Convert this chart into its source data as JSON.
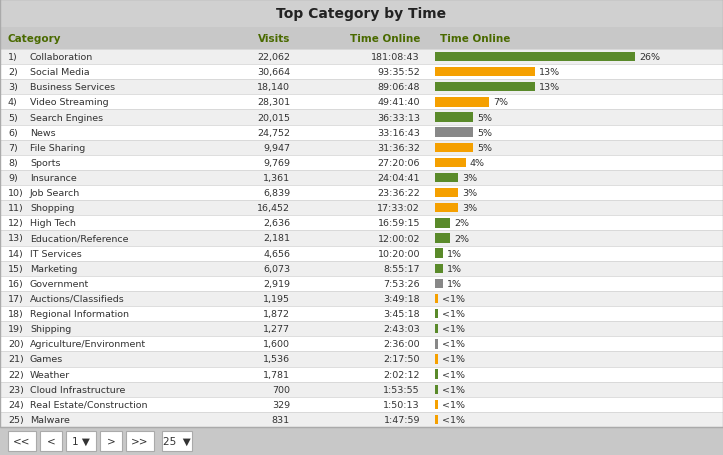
{
  "title": "Top Category by Time",
  "columns": [
    "Category",
    "Visits",
    "Time Online",
    "Time Online"
  ],
  "rows": [
    {
      "num": "1)",
      "category": "Collaboration",
      "visits": "22,062",
      "time": "181:08:43",
      "pct": 26,
      "color": "#5a8a2a"
    },
    {
      "num": "2)",
      "category": "Social Media",
      "visits": "30,664",
      "time": "93:35:52",
      "pct": 13,
      "color": "#f5a000"
    },
    {
      "num": "3)",
      "category": "Business Services",
      "visits": "18,140",
      "time": "89:06:48",
      "pct": 13,
      "color": "#5a8a2a"
    },
    {
      "num": "4)",
      "category": "Video Streaming",
      "visits": "28,301",
      "time": "49:41:40",
      "pct": 7,
      "color": "#f5a000"
    },
    {
      "num": "5)",
      "category": "Search Engines",
      "visits": "20,015",
      "time": "36:33:13",
      "pct": 5,
      "color": "#5a8a2a"
    },
    {
      "num": "6)",
      "category": "News",
      "visits": "24,752",
      "time": "33:16:43",
      "pct": 5,
      "color": "#888888"
    },
    {
      "num": "7)",
      "category": "File Sharing",
      "visits": "9,947",
      "time": "31:36:32",
      "pct": 5,
      "color": "#f5a000"
    },
    {
      "num": "8)",
      "category": "Sports",
      "visits": "9,769",
      "time": "27:20:06",
      "pct": 4,
      "color": "#f5a000"
    },
    {
      "num": "9)",
      "category": "Insurance",
      "visits": "1,361",
      "time": "24:04:41",
      "pct": 3,
      "color": "#5a8a2a"
    },
    {
      "num": "10)",
      "category": "Job Search",
      "visits": "6,839",
      "time": "23:36:22",
      "pct": 3,
      "color": "#f5a000"
    },
    {
      "num": "11)",
      "category": "Shopping",
      "visits": "16,452",
      "time": "17:33:02",
      "pct": 3,
      "color": "#f5a000"
    },
    {
      "num": "12)",
      "category": "High Tech",
      "visits": "2,636",
      "time": "16:59:15",
      "pct": 2,
      "color": "#5a8a2a"
    },
    {
      "num": "13)",
      "category": "Education/Reference",
      "visits": "2,181",
      "time": "12:00:02",
      "pct": 2,
      "color": "#5a8a2a"
    },
    {
      "num": "14)",
      "category": "IT Services",
      "visits": "4,656",
      "time": "10:20:00",
      "pct": 1,
      "color": "#5a8a2a"
    },
    {
      "num": "15)",
      "category": "Marketing",
      "visits": "6,073",
      "time": "8:55:17",
      "pct": 1,
      "color": "#5a8a2a"
    },
    {
      "num": "16)",
      "category": "Government",
      "visits": "2,919",
      "time": "7:53:26",
      "pct": 1,
      "color": "#888888"
    },
    {
      "num": "17)",
      "category": "Auctions/Classifieds",
      "visits": "1,195",
      "time": "3:49:18",
      "pct": -1,
      "color": "#f5a000"
    },
    {
      "num": "18)",
      "category": "Regional Information",
      "visits": "1,872",
      "time": "3:45:18",
      "pct": -1,
      "color": "#5a8a2a"
    },
    {
      "num": "19)",
      "category": "Shipping",
      "visits": "1,277",
      "time": "2:43:03",
      "pct": -1,
      "color": "#5a8a2a"
    },
    {
      "num": "20)",
      "category": "Agriculture/Environment",
      "visits": "1,600",
      "time": "2:36:00",
      "pct": -1,
      "color": "#888888"
    },
    {
      "num": "21)",
      "category": "Games",
      "visits": "1,536",
      "time": "2:17:50",
      "pct": -1,
      "color": "#f5a000"
    },
    {
      "num": "22)",
      "category": "Weather",
      "visits": "1,781",
      "time": "2:02:12",
      "pct": -1,
      "color": "#5a8a2a"
    },
    {
      "num": "23)",
      "category": "Cloud Infrastructure",
      "visits": "700",
      "time": "1:53:55",
      "pct": -1,
      "color": "#5a8a2a"
    },
    {
      "num": "24)",
      "category": "Real Estate/Construction",
      "visits": "329",
      "time": "1:50:13",
      "pct": -1,
      "color": "#f5a000"
    },
    {
      "num": "25)",
      "category": "Malware",
      "visits": "831",
      "time": "1:47:59",
      "pct": -1,
      "color": "#f5a000"
    }
  ],
  "title_bg": "#d0d0d0",
  "header_bg": "#c8c8c8",
  "row_bg_even": "#efefef",
  "row_bg_odd": "#ffffff",
  "footer_bg": "#c8c8c8",
  "text_color": "#333333",
  "header_text_color": "#4a6a00",
  "title_fontsize": 10,
  "header_fontsize": 7.5,
  "row_fontsize": 6.8,
  "footer_fontsize": 7.5,
  "bar_max_pct": 26
}
